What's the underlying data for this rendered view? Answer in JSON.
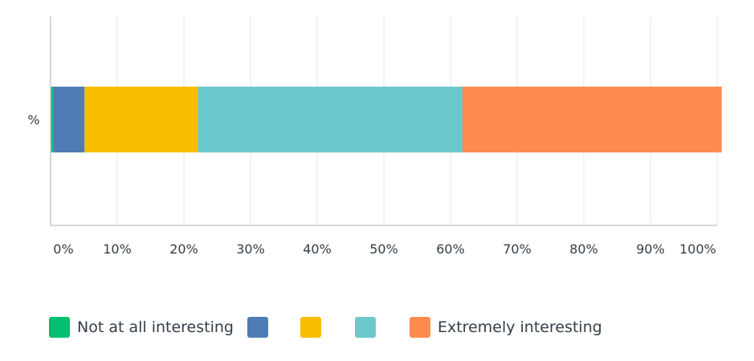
{
  "chart_data": {
    "type": "bar",
    "orientation": "horizontal",
    "stacked": true,
    "categories": [
      "%"
    ],
    "series": [
      {
        "name": "Not at all interesting",
        "values": [
          0.4
        ],
        "color": "#00bf6f"
      },
      {
        "name": "",
        "values": [
          4.7
        ],
        "color": "#507cb6"
      },
      {
        "name": "",
        "values": [
          17.0
        ],
        "color": "#f9be00"
      },
      {
        "name": "",
        "values": [
          39.7
        ],
        "color": "#6bc8cd"
      },
      {
        "name": "Extremely interesting",
        "values": [
          38.9
        ],
        "color": "#ff8b4f"
      }
    ],
    "xlim": [
      0,
      100
    ],
    "xticks": [
      "0%",
      "10%",
      "20%",
      "30%",
      "40%",
      "50%",
      "60%",
      "70%",
      "80%",
      "90%",
      "100%"
    ],
    "grid": true,
    "legend_position": "bottom"
  }
}
